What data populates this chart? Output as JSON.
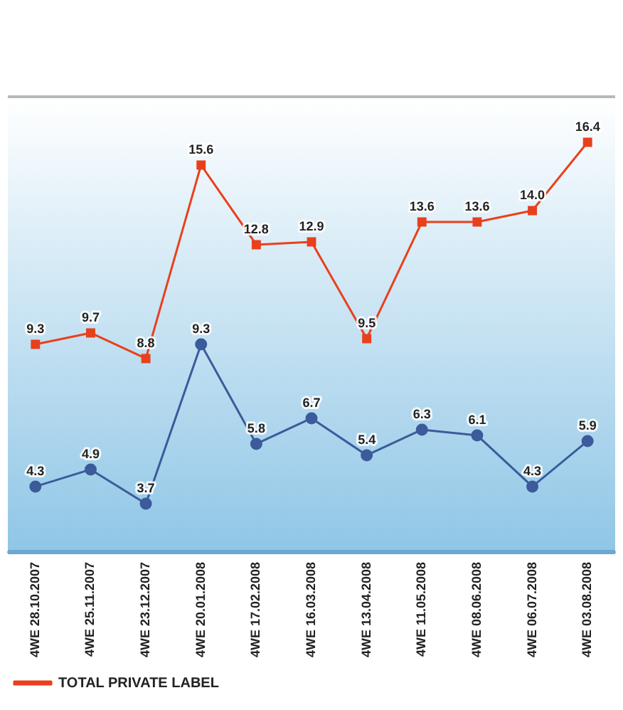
{
  "chart_data": {
    "type": "line",
    "categories": [
      "4WE 28.10.2007",
      "4WE 25.11.2007",
      "4WE 23.12.2007",
      "4WE 20.01.2008",
      "4WE 17.02.2008",
      "4WE 16.03.2008",
      "4WE 13.04.2008",
      "4WE 11.05.2008",
      "4WE 08.06.2008",
      "4WE 06.07.2008",
      "4WE 03.08.2008"
    ],
    "series": [
      {
        "color": "#3b5b9a",
        "marker": "circle",
        "values": [
          4.3,
          4.9,
          3.7,
          9.3,
          5.8,
          6.7,
          5.4,
          6.3,
          6.1,
          4.3,
          5.9
        ],
        "value_labels": [
          "4.3",
          "4.9",
          "3.7",
          "9.3",
          "5.8",
          "6.7",
          "5.4",
          "6.3",
          "6.1",
          "4.3",
          "5.9"
        ]
      },
      {
        "name": "TOTAL PRIVATE LABEL",
        "color": "#e8401c",
        "marker": "square",
        "values": [
          9.3,
          9.7,
          8.8,
          15.6,
          12.8,
          12.9,
          9.5,
          13.6,
          13.6,
          14.0,
          16.4
        ],
        "value_labels": [
          "9.3",
          "9.7",
          "8.8",
          "15.6",
          "12.8",
          "12.9",
          "9.5",
          "13.6",
          "13.6",
          "14.0",
          "16.4"
        ]
      }
    ],
    "grid": false,
    "legend": "bottom left",
    "line_style": "solid"
  }
}
